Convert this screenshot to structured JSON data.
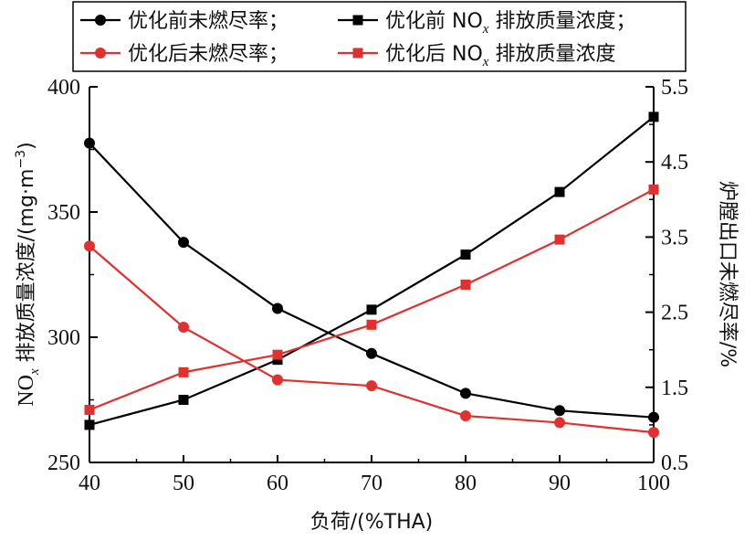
{
  "chart_data": {
    "type": "line",
    "x": [
      40,
      50,
      60,
      70,
      80,
      90,
      100
    ],
    "xlabel": "负荷/(%THA)",
    "xlim": [
      40,
      100
    ],
    "xticks": [
      "40",
      "50",
      "60",
      "70",
      "80",
      "90",
      "100"
    ],
    "ylabel_left": {
      "prefix": "NO",
      "sub": "x",
      "rest": " 排放质量浓度/(mg·m",
      "sup": "−3",
      "close": ")"
    },
    "ylim_left": [
      250,
      400
    ],
    "yticks_left": [
      "250",
      "300",
      "350",
      "400"
    ],
    "ylabel_right": "炉膛出口未燃尽率/%",
    "ylim_right": [
      0.5,
      5.5
    ],
    "yticks_right": [
      "0.5",
      "1.5",
      "2.5",
      "3.5",
      "4.5",
      "5.5"
    ],
    "legend_position": "top",
    "series": [
      {
        "name": "优化前未燃尽率；",
        "axis": "right",
        "marker": "circle",
        "color": "#000000",
        "values": [
          4.75,
          3.43,
          2.55,
          1.95,
          1.42,
          1.19,
          1.1
        ]
      },
      {
        "name": "优化前 NOx 排放质量浓度；",
        "name_parts": {
          "pre": "优化前 NO",
          "sub": "x",
          "post": " 排放质量浓度；"
        },
        "axis": "left",
        "marker": "square",
        "color": "#000000",
        "values": [
          265,
          275,
          291,
          311,
          333,
          358,
          388
        ]
      },
      {
        "name": "优化后未燃尽率；",
        "axis": "right",
        "marker": "circle",
        "color": "#e03030",
        "values": [
          3.38,
          2.3,
          1.6,
          1.52,
          1.12,
          1.03,
          0.9
        ]
      },
      {
        "name": "优化后 NOx 排放质量浓度",
        "name_parts": {
          "pre": "优化后 NO",
          "sub": "x",
          "post": " 排放质量浓度"
        },
        "axis": "left",
        "marker": "square",
        "color": "#e03030",
        "values": [
          271,
          286,
          293,
          305,
          321,
          339,
          359
        ]
      }
    ]
  }
}
